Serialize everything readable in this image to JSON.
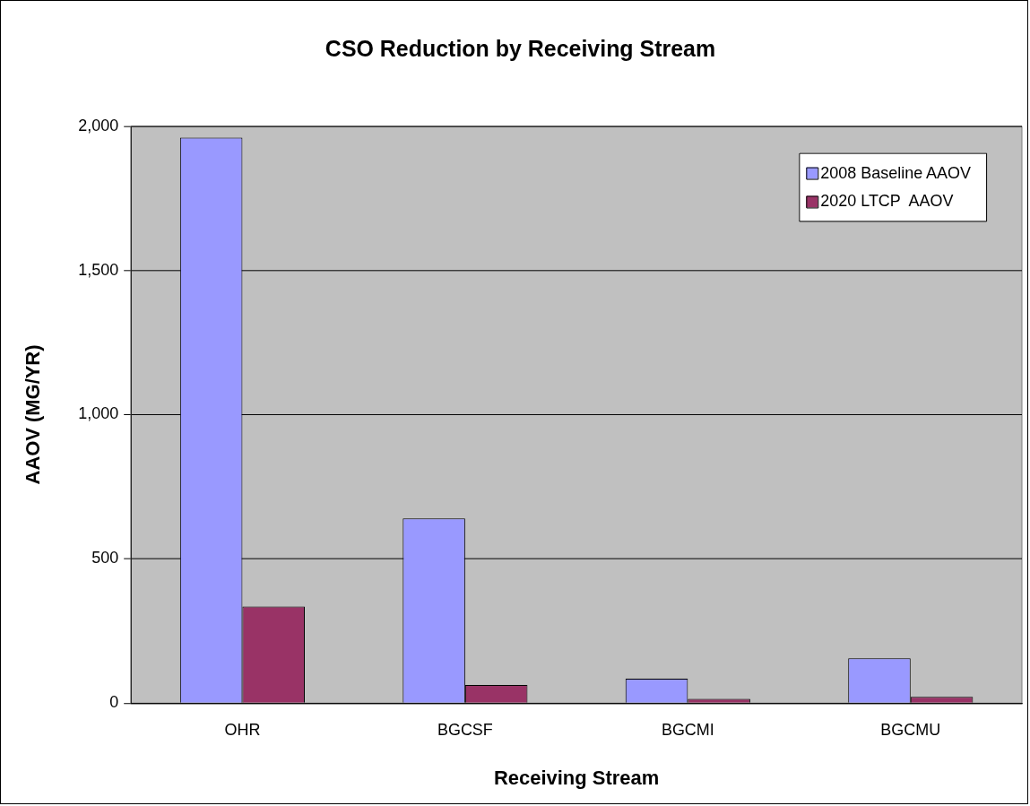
{
  "chart_data": {
    "type": "bar",
    "title": "CSO Reduction by Receiving Stream",
    "xlabel": "Receiving Stream",
    "ylabel": "AAOV (MG/YR)",
    "categories": [
      "OHR",
      "BGCSF",
      "BGCMI",
      "BGCMU"
    ],
    "series": [
      {
        "name": "2008 Baseline AAOV",
        "color": "#9999ff",
        "values": [
          1960,
          640,
          85,
          155
        ]
      },
      {
        "name": "2020 LTCP  AAOV",
        "color": "#993366",
        "values": [
          335,
          63,
          15,
          22
        ]
      }
    ],
    "ylim": [
      0,
      2000
    ],
    "yticks": [
      {
        "value": 0,
        "label": "0"
      },
      {
        "value": 500,
        "label": "500"
      },
      {
        "value": 1000,
        "label": "1,000"
      },
      {
        "value": 1500,
        "label": "1,500"
      },
      {
        "value": 2000,
        "label": "2,000"
      }
    ],
    "grid": "y",
    "legend": "top right"
  }
}
